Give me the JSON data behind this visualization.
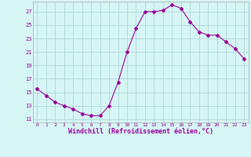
{
  "x": [
    0,
    1,
    2,
    3,
    4,
    5,
    6,
    7,
    8,
    9,
    10,
    11,
    12,
    13,
    14,
    15,
    16,
    17,
    18,
    19,
    20,
    21,
    22,
    23
  ],
  "y": [
    15.5,
    14.5,
    13.5,
    13.0,
    12.5,
    11.8,
    11.5,
    11.5,
    13.0,
    16.5,
    21.0,
    24.5,
    27.0,
    27.0,
    27.2,
    28.0,
    27.5,
    25.5,
    24.0,
    23.5,
    23.5,
    22.5,
    21.5,
    20.0
  ],
  "line_color": "#990099",
  "marker": "D",
  "marker_size": 2,
  "bg_color": "#d6f5f5",
  "grid_color": "#b0d8d8",
  "xlabel": "Windchill (Refroidissement éolien,°C)",
  "xlabel_color": "#990099",
  "tick_color": "#990099",
  "yticks": [
    11,
    13,
    15,
    17,
    19,
    21,
    23,
    25,
    27
  ],
  "xticks": [
    0,
    1,
    2,
    3,
    4,
    5,
    6,
    7,
    8,
    9,
    10,
    11,
    12,
    13,
    14,
    15,
    16,
    17,
    18,
    19,
    20,
    21,
    22,
    23
  ],
  "xlim": [
    -0.5,
    23.5
  ],
  "ylim": [
    10.5,
    28.5
  ]
}
